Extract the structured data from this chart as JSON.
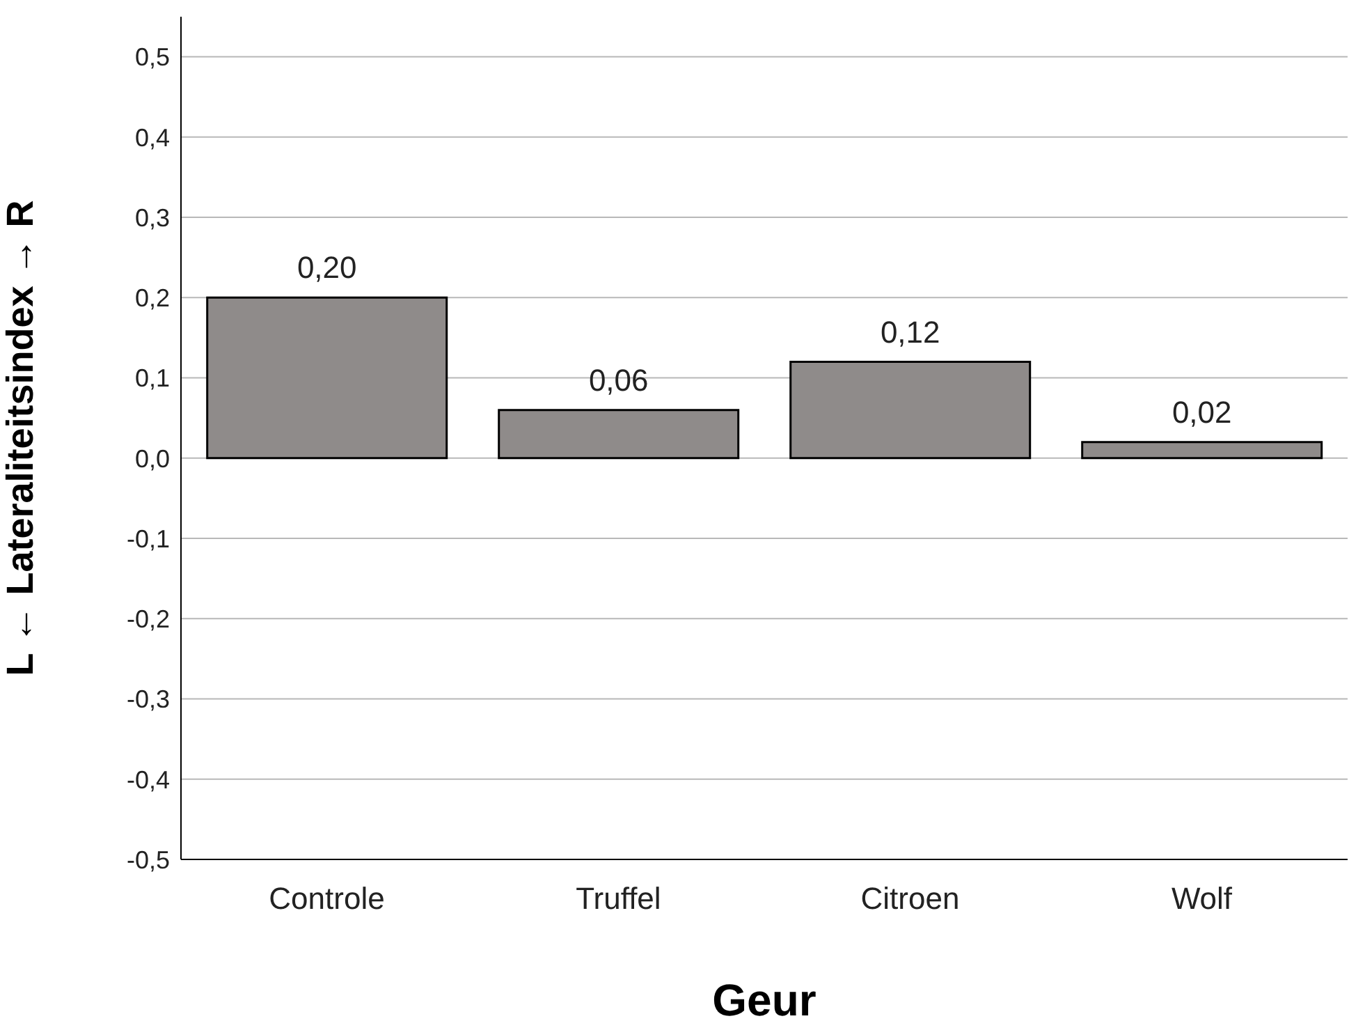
{
  "chart_data": {
    "type": "bar",
    "xlabel": "Geur",
    "ylabel": "L ← Lateraliteitsindex → R",
    "categories": [
      "Controle",
      "Truffel",
      "Citroen",
      "Wolf"
    ],
    "values": [
      0.2,
      0.06,
      0.12,
      0.02
    ],
    "value_labels": [
      "0,20",
      "0,06",
      "0,12",
      "0,02"
    ],
    "color": "#8f8b8a",
    "ylim": [
      -0.5,
      0.55
    ],
    "yticks": [
      {
        "value": -0.5,
        "label": "-0,5"
      },
      {
        "value": -0.4,
        "label": "-0,4"
      },
      {
        "value": -0.3,
        "label": "-0,3"
      },
      {
        "value": -0.2,
        "label": "-0,2"
      },
      {
        "value": -0.1,
        "label": "-0,1"
      },
      {
        "value": 0,
        "label": "0,0"
      },
      {
        "value": 0.1,
        "label": "0,1"
      },
      {
        "value": 0.2,
        "label": "0,2"
      },
      {
        "value": 0.3,
        "label": "0,3"
      },
      {
        "value": 0.4,
        "label": "0,4"
      },
      {
        "value": 0.5,
        "label": "0,5"
      }
    ],
    "grid": "y"
  }
}
